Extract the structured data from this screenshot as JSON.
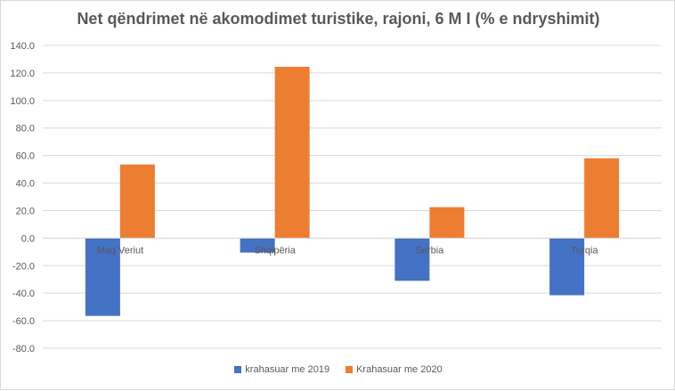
{
  "chart_data": {
    "type": "bar",
    "title": "Net qëndrimet në akomodimet turistike, rajoni, 6 M I (% e ndryshimit)",
    "categories": [
      "Maq Veriut",
      "Shqipëria",
      "Serbia",
      "Turqia"
    ],
    "series": [
      {
        "name": "krahasuar me 2019",
        "color": "#4472c4",
        "values": [
          -56.5,
          -10.5,
          -31.0,
          -41.5
        ]
      },
      {
        "name": "Krahasuar me 2020",
        "color": "#ed7d31",
        "values": [
          53.5,
          124.5,
          22.5,
          58.0
        ]
      }
    ],
    "ylim": [
      -80,
      140
    ],
    "yticks": [
      "140.0",
      "120.0",
      "100.0",
      "80.0",
      "60.0",
      "40.0",
      "20.0",
      "0.0",
      "-20.0",
      "-40.0",
      "-60.0",
      "-80.0"
    ],
    "grid": true,
    "legend": "bottom"
  }
}
